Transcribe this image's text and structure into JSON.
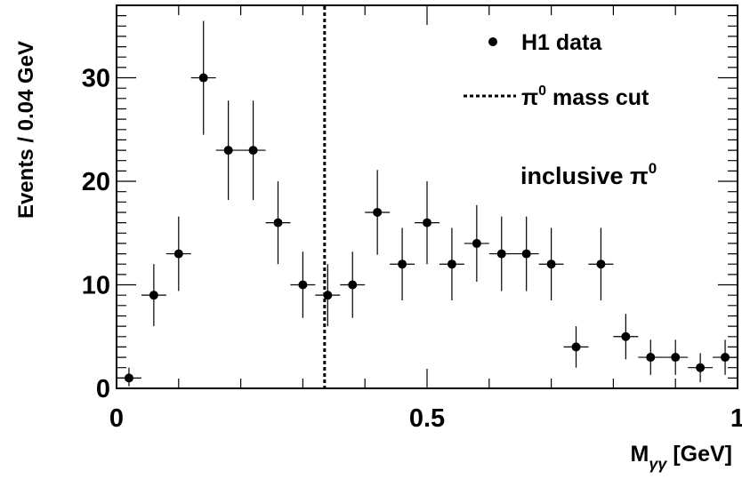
{
  "chart_data": {
    "type": "scatter",
    "xlabel_main": "M",
    "xlabel_sub": "γγ",
    "xlabel_unit": " [GeV]",
    "ylabel": "Events / 0.04 GeV",
    "xlim": [
      0,
      1
    ],
    "ylim": [
      0,
      37
    ],
    "x_ticks": [
      {
        "value": 0,
        "label": "0"
      },
      {
        "value": 0.5,
        "label": "0.5"
      },
      {
        "value": 1,
        "label": "1"
      }
    ],
    "y_ticks": [
      {
        "value": 0,
        "label": "0"
      },
      {
        "value": 10,
        "label": "10"
      },
      {
        "value": 20,
        "label": "20"
      },
      {
        "value": 30,
        "label": "30"
      }
    ],
    "grid": false,
    "legend_position": "top-right",
    "legend": [
      {
        "label": "H1 data",
        "marker": "dot"
      },
      {
        "label_main": "π",
        "label_sup": "0",
        "label_rest": " mass cut",
        "marker": "dashed-line"
      }
    ],
    "annotation": {
      "main": "inclusive π",
      "sup": "0"
    },
    "cut_line_x": 0.335,
    "x_bin_half_width": 0.02,
    "series": [
      {
        "name": "H1 data",
        "x": [
          0.02,
          0.06,
          0.1,
          0.14,
          0.18,
          0.22,
          0.26,
          0.3,
          0.34,
          0.38,
          0.42,
          0.46,
          0.5,
          0.54,
          0.58,
          0.62,
          0.66,
          0.7,
          0.74,
          0.78,
          0.82,
          0.86,
          0.9,
          0.94,
          0.98
        ],
        "y": [
          1,
          9,
          13,
          30,
          23,
          23,
          16,
          10,
          9,
          10,
          17,
          12,
          16,
          12,
          14,
          13,
          13,
          12,
          4,
          12,
          5,
          3,
          3,
          2,
          3
        ],
        "y_err_low": [
          0.8,
          3.0,
          3.6,
          5.5,
          4.8,
          4.8,
          4.0,
          3.2,
          3.0,
          3.2,
          4.1,
          3.5,
          4.0,
          3.5,
          3.7,
          3.6,
          3.6,
          3.5,
          2.0,
          3.5,
          2.2,
          1.7,
          1.7,
          1.4,
          1.7
        ],
        "y_err_high": [
          1.0,
          3.0,
          3.6,
          5.5,
          4.8,
          4.8,
          4.0,
          3.2,
          3.0,
          3.2,
          4.1,
          3.5,
          4.0,
          3.5,
          3.7,
          3.6,
          3.6,
          3.5,
          2.0,
          3.5,
          2.2,
          1.7,
          1.7,
          1.4,
          1.7
        ]
      }
    ]
  }
}
